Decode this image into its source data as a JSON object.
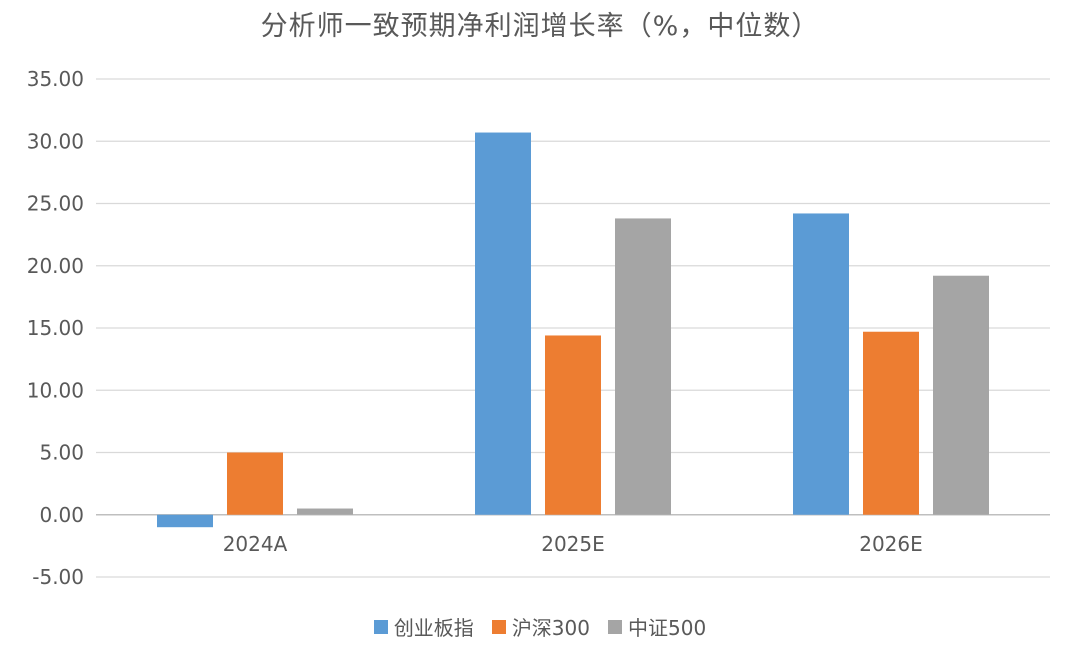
{
  "chart_data": {
    "type": "bar",
    "title": "分析师一致预期净利润增长率（%，中位数）",
    "categories": [
      "2024A",
      "2025E",
      "2026E"
    ],
    "series": [
      {
        "name": "创业板指",
        "color": "#5B9BD5",
        "values": [
          -1.0,
          30.7,
          24.2
        ]
      },
      {
        "name": "沪深300",
        "color": "#ED7D31",
        "values": [
          5.0,
          14.4,
          14.7
        ]
      },
      {
        "name": "中证500",
        "color": "#A5A5A5",
        "values": [
          0.5,
          23.8,
          19.2
        ]
      }
    ],
    "ylim": [
      -5,
      35
    ],
    "yticks": [
      "-5.00",
      "0.00",
      "5.00",
      "10.00",
      "15.00",
      "20.00",
      "25.00",
      "30.00",
      "35.00"
    ],
    "grid": true,
    "legend_position": "bottom"
  }
}
